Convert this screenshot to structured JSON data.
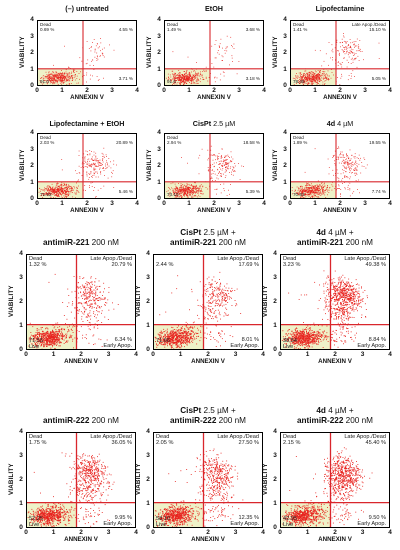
{
  "chart_data": [
    {
      "type": "scatter",
      "title": "(–) untreated",
      "xlabel": "ANNEXIN V",
      "ylabel": "VIABILITY",
      "xlim": [
        0,
        4
      ],
      "ylim": [
        0,
        4
      ],
      "quadrants": {
        "dead_label": "Dead",
        "dead_pct": "0.69 %",
        "late_label": "",
        "late_pct": "4.55 %",
        "live_label": "",
        "live_pct": "91.0",
        "early_label": "",
        "early_pct": "3.71 %"
      }
    },
    {
      "type": "scatter",
      "title": "EtOH",
      "xlabel": "ANNEXIN V",
      "ylabel": "VIABILITY",
      "xlim": [
        0,
        4
      ],
      "ylim": [
        0,
        4
      ],
      "quadrants": {
        "dead_label": "Dead",
        "dead_pct": "1.49 %",
        "late_label": "",
        "late_pct": "3.68 %",
        "live_label": "",
        "live_pct": "91.6",
        "early_label": "",
        "early_pct": "3.18 %"
      }
    },
    {
      "type": "scatter",
      "title": "Lipofectamine",
      "xlabel": "ANNEXIN V",
      "ylabel": "VIABILITY",
      "xlim": [
        0,
        4
      ],
      "ylim": [
        0,
        4
      ],
      "quadrants": {
        "dead_label": "Dead",
        "dead_pct": "1.41 %",
        "late_label": "Late Apop./Dead",
        "late_pct": "15.10 %",
        "live_label": "",
        "live_pct": "78.45",
        "early_label": "",
        "early_pct": "5.05 %"
      }
    },
    {
      "type": "scatter",
      "title": "Lipofectamine + EtOH",
      "xlabel": "ANNEXIN V",
      "ylabel": "VIABILITY",
      "xlim": [
        0,
        4
      ],
      "ylim": [
        0,
        4
      ],
      "quadrants": {
        "dead_label": "Dead",
        "dead_pct": "2.03 %",
        "late_label": "",
        "late_pct": "20.89 %",
        "live_label": "",
        "live_pct": "71.62",
        "early_label": "",
        "early_pct": "5.46 %"
      }
    },
    {
      "type": "scatter",
      "title": "CisPt 2.5 µM",
      "xlabel": "ANNEXIN V",
      "ylabel": "VIABILITY",
      "xlim": [
        0,
        4
      ],
      "ylim": [
        0,
        4
      ],
      "quadrants": {
        "dead_label": "Dead",
        "dead_pct": "2.94 %",
        "late_label": "",
        "late_pct": "18.58 %",
        "live_label": "",
        "live_pct": "73.10",
        "early_label": "",
        "early_pct": "5.39 %"
      }
    },
    {
      "type": "scatter",
      "title": "4d 4 µM",
      "xlabel": "ANNEXIN V",
      "ylabel": "VIABILITY",
      "xlim": [
        0,
        4
      ],
      "ylim": [
        0,
        4
      ],
      "quadrants": {
        "dead_label": "Dead",
        "dead_pct": "1.89 %",
        "late_label": "",
        "late_pct": "19.55 %",
        "live_label": "",
        "live_pct": "70.83",
        "early_label": "",
        "early_pct": "7.74 %"
      }
    },
    {
      "type": "scatter",
      "title": "antimiR-221 200 nM",
      "xlabel": "ANNEXIN V",
      "ylabel": "VIABILITY",
      "xlim": [
        0,
        4
      ],
      "ylim": [
        0,
        4
      ],
      "quadrants": {
        "dead_label": "Dead",
        "dead_pct": "1.32 %",
        "late_label": "Late Apop./Dead",
        "late_pct": "20.79 %",
        "live_label": "Live",
        "live_pct": "71.55",
        "early_label": "Early Apop.",
        "early_pct": "6.34 %"
      }
    },
    {
      "type": "scatter",
      "title": "CisPt 2.5 µM + antimiR-221 200 nM",
      "xlabel": "ANNEXIN V",
      "ylabel": "VIABILITY",
      "xlim": [
        0,
        4
      ],
      "ylim": [
        0,
        4
      ],
      "quadrants": {
        "dead_label": "",
        "dead_pct": "2.44 %",
        "late_label": "Late Apop./Dead",
        "late_pct": "17.69 %",
        "live_label": "",
        "live_pct": "71.66",
        "early_label": "Early Apop.",
        "early_pct": "8.01 %"
      }
    },
    {
      "type": "scatter",
      "title": "4d 4 µM + antimiR-221 200 nM",
      "xlabel": "ANNEXIN V",
      "ylabel": "VIABILITY",
      "xlim": [
        0,
        4
      ],
      "ylim": [
        0,
        4
      ],
      "quadrants": {
        "dead_label": "Dead",
        "dead_pct": "3.23 %",
        "late_label": "Late Apop./Dead",
        "late_pct": "49.38 %",
        "live_label": "Live",
        "live_pct": "38.54",
        "early_label": "Early Apop.",
        "early_pct": "8.84 %"
      }
    },
    {
      "type": "scatter",
      "title": "antimiR-222 200 nM",
      "xlabel": "ANNEXIN V",
      "ylabel": "VIABILITY",
      "xlim": [
        0,
        4
      ],
      "ylim": [
        0,
        4
      ],
      "quadrants": {
        "dead_label": "Dead",
        "dead_pct": "1.75 %",
        "late_label": "Late Apop./Dead",
        "late_pct": "36.05 %",
        "live_label": "Live",
        "live_pct": "52.25",
        "early_label": "Early Apop.",
        "early_pct": "9.95 %"
      }
    },
    {
      "type": "scatter",
      "title": "CisPt 2.5 µM + antimiR-222 200 nM",
      "xlabel": "ANNEXIN V",
      "ylabel": "VIABILITY",
      "xlim": [
        0,
        4
      ],
      "ylim": [
        0,
        4
      ],
      "quadrants": {
        "dead_label": "Dead",
        "dead_pct": "2.05 %",
        "late_label": "Late Apop./Dead",
        "late_pct": "27.50 %",
        "live_label": "Live",
        "live_pct": "58.10",
        "early_label": "Early Apop.",
        "early_pct": "12.35 %"
      }
    },
    {
      "type": "scatter",
      "title": "4d 4 µM + antimiR-222 200 nM",
      "xlabel": "ANNEXIN V",
      "ylabel": "VIABILITY",
      "xlim": [
        0,
        4
      ],
      "ylim": [
        0,
        4
      ],
      "quadrants": {
        "dead_label": "Dead",
        "dead_pct": "2.15 %",
        "late_label": "Late Apop./Dead",
        "late_pct": "45.40 %",
        "live_label": "Live",
        "live_pct": "42.95",
        "early_label": "Early Apop.",
        "early_pct": "9.50 %"
      }
    }
  ],
  "titles": {
    "p0": {
      "b": "(–) untreated",
      "n": ""
    },
    "p1": {
      "b": "EtOH",
      "n": ""
    },
    "p2": {
      "b": "Lipofectamine",
      "n": ""
    },
    "p3": {
      "b": "Lipofectamine + EtOH",
      "n": ""
    },
    "p4": {
      "b": "CisPt",
      "n": " 2.5 µM"
    },
    "p5": {
      "b": "4d",
      "n": " 4 µM"
    },
    "p6": {
      "l1b": "",
      "l1n": "",
      "l2b": "antimiR-221",
      "l2n": " 200 nM"
    },
    "p7": {
      "l1b": "CisPt",
      "l1n": " 2.5 µM +",
      "l2b": "antimiR-221",
      "l2n": " 200 nM"
    },
    "p8": {
      "l1b": "4d",
      "l1n": " 4 µM +",
      "l2b": "antimiR-221",
      "l2n": " 200 nM"
    },
    "p9": {
      "l1b": "",
      "l1n": "",
      "l2b": "antimiR-222",
      "l2n": " 200 nM"
    },
    "p10": {
      "l1b": "CisPt",
      "l1n": " 2.5 µM +",
      "l2b": "antimiR-222",
      "l2n": " 200 nM"
    },
    "p11": {
      "l1b": "4d",
      "l1n": " 4 µM +",
      "l2b": "antimiR-222",
      "l2n": " 200 nM"
    }
  },
  "colors": {
    "dots": "#e8231f",
    "gate": "#d9262c",
    "live_bg": "#eef2c8"
  }
}
